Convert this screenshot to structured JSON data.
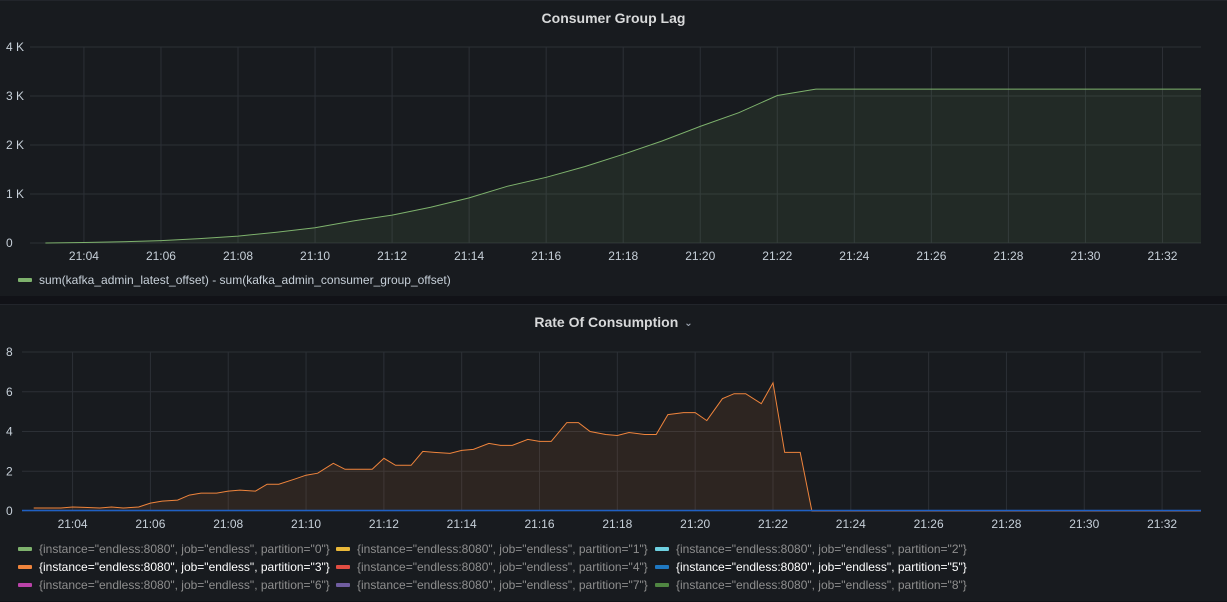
{
  "chart_data": [
    {
      "type": "area",
      "title": "Consumer Group Lag",
      "x_ticks": [
        "21:04",
        "21:06",
        "21:08",
        "21:10",
        "21:12",
        "21:14",
        "21:16",
        "21:18",
        "21:20",
        "21:22",
        "21:24",
        "21:26",
        "21:28",
        "21:30",
        "21:32"
      ],
      "y_ticks": [
        "0",
        "1 K",
        "2 K",
        "3 K",
        "4 K"
      ],
      "ylim": [
        0,
        4000
      ],
      "xlim_minutes": [
        "21:02.6",
        "21:33"
      ],
      "grid": true,
      "legend_placement": "bottom-left",
      "series": [
        {
          "name": "sum(kafka_admin_latest_offset) - sum(kafka_admin_consumer_group_offset)",
          "color": "#7eb26d",
          "x": [
            "21:03",
            "21:04",
            "21:05",
            "21:06",
            "21:07",
            "21:08",
            "21:09",
            "21:10",
            "21:11",
            "21:12",
            "21:13",
            "21:14",
            "21:15",
            "21:16",
            "21:17",
            "21:18",
            "21:19",
            "21:20",
            "21:21",
            "21:22",
            "21:23",
            "21:24",
            "21:25",
            "21:26",
            "21:27",
            "21:28",
            "21:29",
            "21:30",
            "21:31",
            "21:32",
            "21:33"
          ],
          "values": [
            0,
            10,
            25,
            50,
            90,
            140,
            220,
            310,
            450,
            570,
            730,
            920,
            1160,
            1340,
            1560,
            1810,
            2080,
            2380,
            2660,
            3010,
            3140,
            3140,
            3140,
            3140,
            3140,
            3140,
            3140,
            3140,
            3140,
            3140,
            3140
          ]
        }
      ]
    },
    {
      "type": "area",
      "title": "Rate Of Consumption",
      "x_ticks": [
        "21:04",
        "21:06",
        "21:08",
        "21:10",
        "21:12",
        "21:14",
        "21:16",
        "21:18",
        "21:20",
        "21:22",
        "21:24",
        "21:26",
        "21:28",
        "21:30",
        "21:32"
      ],
      "y_ticks": [
        "0",
        "2",
        "4",
        "6",
        "8"
      ],
      "ylim": [
        0,
        8
      ],
      "grid": true,
      "legend_placement": "bottom",
      "series": [
        {
          "name": "{instance=\"endless:8080\", job=\"endless\", partition=\"3\"}",
          "color": "#ef843c",
          "x": [
            "21:03.0",
            "21:03.3",
            "21:03.7",
            "21:04.0",
            "21:04.3",
            "21:04.7",
            "21:05.0",
            "21:05.3",
            "21:05.7",
            "21:06.0",
            "21:06.3",
            "21:06.7",
            "21:07.0",
            "21:07.3",
            "21:07.7",
            "21:08.0",
            "21:08.3",
            "21:08.7",
            "21:09.0",
            "21:09.3",
            "21:09.7",
            "21:10.0",
            "21:10.3",
            "21:10.7",
            "21:11.0",
            "21:11.3",
            "21:11.7",
            "21:12.0",
            "21:12.3",
            "21:12.7",
            "21:13.0",
            "21:13.3",
            "21:13.7",
            "21:14.0",
            "21:14.3",
            "21:14.7",
            "21:15.0",
            "21:15.3",
            "21:15.7",
            "21:16.0",
            "21:16.3",
            "21:16.7",
            "21:17.0",
            "21:17.3",
            "21:17.7",
            "21:18.0",
            "21:18.3",
            "21:18.7",
            "21:19.0",
            "21:19.3",
            "21:19.7",
            "21:20.0",
            "21:20.3",
            "21:20.7",
            "21:21.0",
            "21:21.3",
            "21:21.7",
            "21:22.0",
            "21:22.3",
            "21:22.7",
            "21:23.0",
            "21:33.0"
          ],
          "values": [
            0.15,
            0.15,
            0.15,
            0.2,
            0.18,
            0.15,
            0.2,
            0.15,
            0.2,
            0.4,
            0.5,
            0.55,
            0.8,
            0.9,
            0.9,
            1.0,
            1.05,
            1.0,
            1.35,
            1.35,
            1.6,
            1.8,
            1.9,
            2.4,
            2.1,
            2.1,
            2.1,
            2.65,
            2.3,
            2.3,
            3.0,
            2.95,
            2.9,
            3.05,
            3.1,
            3.4,
            3.3,
            3.3,
            3.6,
            3.5,
            3.5,
            4.45,
            4.45,
            4.0,
            3.85,
            3.8,
            3.95,
            3.85,
            3.85,
            4.85,
            4.95,
            4.95,
            4.55,
            5.65,
            5.9,
            5.9,
            5.4,
            6.45,
            2.95,
            2.95,
            0,
            0
          ]
        }
      ],
      "legend": [
        {
          "name": "{instance=\"endless:8080\", job=\"endless\", partition=\"0\"}",
          "color": "#7eb26d"
        },
        {
          "name": "{instance=\"endless:8080\", job=\"endless\", partition=\"1\"}",
          "color": "#eab839"
        },
        {
          "name": "{instance=\"endless:8080\", job=\"endless\", partition=\"2\"}",
          "color": "#6ed0e0"
        },
        {
          "name": "{instance=\"endless:8080\", job=\"endless\", partition=\"3\"}",
          "color": "#ef843c"
        },
        {
          "name": "{instance=\"endless:8080\", job=\"endless\", partition=\"4\"}",
          "color": "#e24d42"
        },
        {
          "name": "{instance=\"endless:8080\", job=\"endless\", partition=\"5\"}",
          "color": "#1f78c1"
        },
        {
          "name": "{instance=\"endless:8080\", job=\"endless\", partition=\"6\"}",
          "color": "#ba43a9"
        },
        {
          "name": "{instance=\"endless:8080\", job=\"endless\", partition=\"7\"}",
          "color": "#705da0"
        },
        {
          "name": "{instance=\"endless:8080\", job=\"endless\", partition=\"8\"}",
          "color": "#508642"
        }
      ]
    }
  ],
  "ui": {
    "panel2_menu_icon": "chevron-down-icon"
  }
}
